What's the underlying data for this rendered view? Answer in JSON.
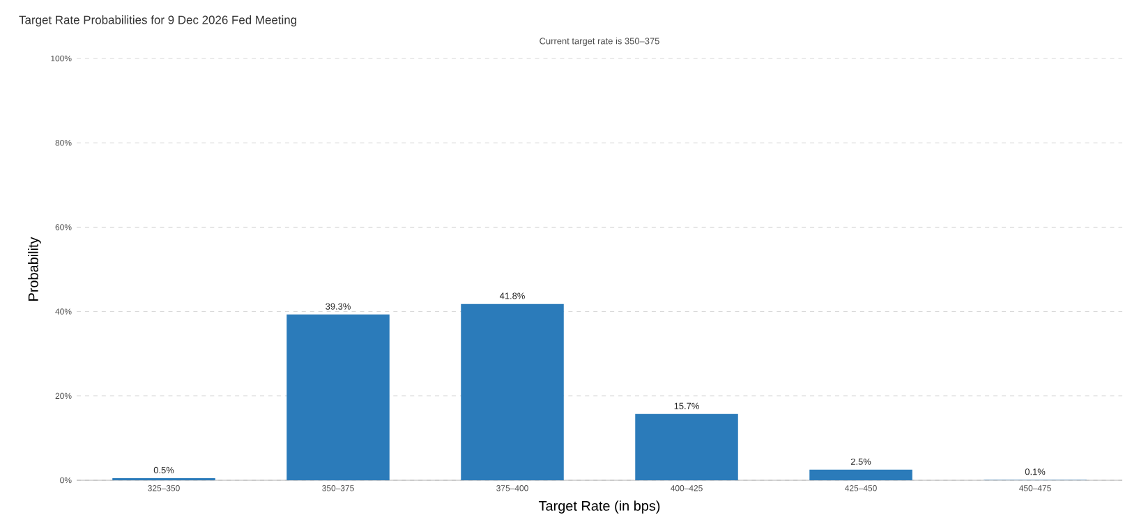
{
  "chart_data": {
    "type": "bar",
    "title": "Target Rate Probabilities for 9 Dec 2026 Fed Meeting",
    "subtitle": "Current target rate is 350–375",
    "xlabel": "Target Rate (in bps)",
    "ylabel": "Probability",
    "categories": [
      "325–350",
      "350–375",
      "375–400",
      "400–425",
      "425–450",
      "450–475"
    ],
    "values": [
      0.5,
      39.3,
      41.8,
      15.7,
      2.5,
      0.1
    ],
    "value_labels": [
      "0.5%",
      "39.3%",
      "41.8%",
      "15.7%",
      "2.5%",
      "0.1%"
    ],
    "color": "#2b7bba",
    "ylim": [
      0,
      100
    ],
    "yticks": [
      {
        "value": 0,
        "label": "0%"
      },
      {
        "value": 20,
        "label": "20%"
      },
      {
        "value": 40,
        "label": "40%"
      },
      {
        "value": 60,
        "label": "60%"
      },
      {
        "value": 80,
        "label": "80%"
      },
      {
        "value": 100,
        "label": "100%"
      }
    ],
    "grid": "y"
  }
}
